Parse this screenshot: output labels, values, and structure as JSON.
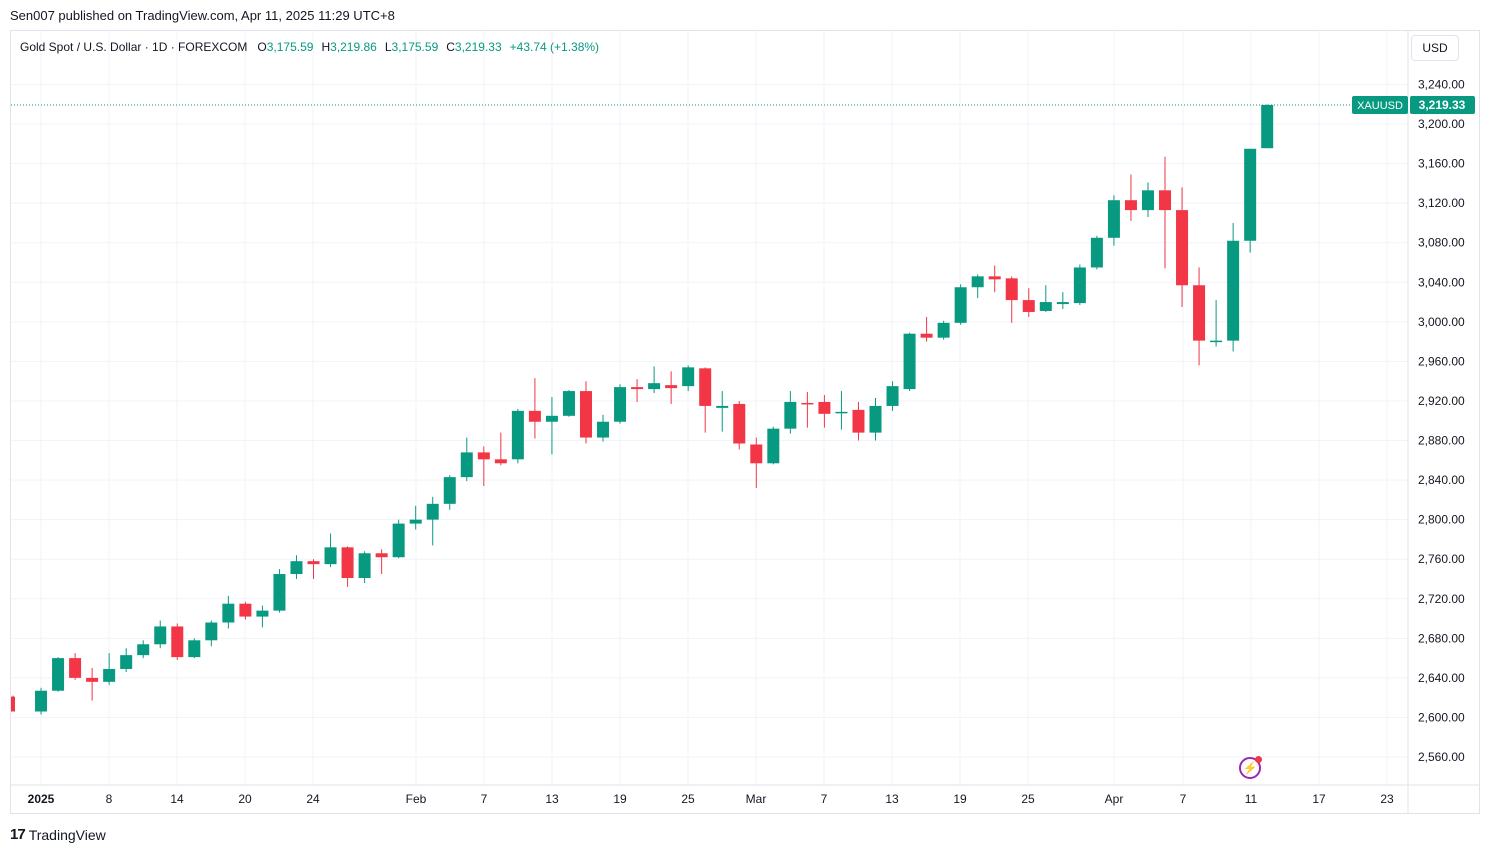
{
  "header": {
    "published": "Sen007 published on TradingView.com, Apr 11, 2025 11:29 UTC+8"
  },
  "legend": {
    "symbol": "Gold Spot / U.S. Dollar · 1D · FOREXCOM",
    "o_label": "O",
    "o": "3,175.59",
    "h_label": "H",
    "h": "3,219.86",
    "l_label": "L",
    "l": "3,175.59",
    "c_label": "C",
    "c": "3,219.33",
    "change": "+43.74 (+1.38%)"
  },
  "currency_button": "USD",
  "price_tag": {
    "ticker": "XAUUSD",
    "price": "3,219.33"
  },
  "brand": "TradingView",
  "colors": {
    "up": "#089981",
    "down": "#f23645",
    "grid": "#f0f3fa",
    "text": "#131722",
    "alert": "#9c27b0"
  },
  "icons": {
    "alert": "lightning-bolt-icon",
    "brand": "tradingview-logo-icon"
  },
  "chart_data": {
    "type": "candlestick",
    "ylim": [
      2520,
      3280
    ],
    "y_ticks": [
      2560,
      2600,
      2640,
      2680,
      2720,
      2760,
      2800,
      2840,
      2880,
      2920,
      2960,
      3000,
      3040,
      3080,
      3120,
      3160,
      3200,
      3240
    ],
    "y_tick_labels": [
      "2,560.00",
      "2,600.00",
      "2,640.00",
      "2,680.00",
      "2,720.00",
      "2,760.00",
      "2,800.00",
      "2,840.00",
      "2,880.00",
      "2,920.00",
      "2,960.00",
      "3,000.00",
      "3,040.00",
      "3,080.00",
      "3,120.00",
      "3,160.00",
      "3,200.00",
      "3,240.00"
    ],
    "x_labels": [
      "2025",
      "8",
      "14",
      "20",
      "24",
      "Feb",
      "7",
      "13",
      "19",
      "25",
      "Mar",
      "7",
      "13",
      "19",
      "25",
      "Apr",
      "7",
      "11",
      "17",
      "23"
    ],
    "last_price": 3219.33,
    "candles": [
      {
        "o": 2621,
        "h": 2622,
        "l": 2606,
        "c": 2606
      },
      {
        "o": 2606,
        "h": 2630,
        "l": 2603,
        "c": 2627
      },
      {
        "o": 2627,
        "h": 2661,
        "l": 2626,
        "c": 2660
      },
      {
        "o": 2660,
        "h": 2665,
        "l": 2638,
        "c": 2640
      },
      {
        "o": 2640,
        "h": 2650,
        "l": 2617,
        "c": 2636
      },
      {
        "o": 2636,
        "h": 2665,
        "l": 2633,
        "c": 2649
      },
      {
        "o": 2649,
        "h": 2670,
        "l": 2646,
        "c": 2663
      },
      {
        "o": 2663,
        "h": 2678,
        "l": 2660,
        "c": 2674
      },
      {
        "o": 2674,
        "h": 2698,
        "l": 2670,
        "c": 2692
      },
      {
        "o": 2692,
        "h": 2695,
        "l": 2658,
        "c": 2661
      },
      {
        "o": 2661,
        "h": 2680,
        "l": 2660,
        "c": 2678
      },
      {
        "o": 2678,
        "h": 2698,
        "l": 2672,
        "c": 2696
      },
      {
        "o": 2696,
        "h": 2723,
        "l": 2690,
        "c": 2715
      },
      {
        "o": 2715,
        "h": 2717,
        "l": 2699,
        "c": 2702
      },
      {
        "o": 2702,
        "h": 2713,
        "l": 2691,
        "c": 2708
      },
      {
        "o": 2708,
        "h": 2750,
        "l": 2706,
        "c": 2745
      },
      {
        "o": 2745,
        "h": 2764,
        "l": 2740,
        "c": 2758
      },
      {
        "o": 2758,
        "h": 2760,
        "l": 2740,
        "c": 2755
      },
      {
        "o": 2755,
        "h": 2786,
        "l": 2752,
        "c": 2772
      },
      {
        "o": 2772,
        "h": 2773,
        "l": 2732,
        "c": 2741
      },
      {
        "o": 2741,
        "h": 2768,
        "l": 2736,
        "c": 2766
      },
      {
        "o": 2766,
        "h": 2770,
        "l": 2745,
        "c": 2762
      },
      {
        "o": 2762,
        "h": 2800,
        "l": 2761,
        "c": 2796
      },
      {
        "o": 2796,
        "h": 2814,
        "l": 2790,
        "c": 2800
      },
      {
        "o": 2800,
        "h": 2823,
        "l": 2774,
        "c": 2816
      },
      {
        "o": 2816,
        "h": 2845,
        "l": 2810,
        "c": 2843
      },
      {
        "o": 2843,
        "h": 2883,
        "l": 2839,
        "c": 2868
      },
      {
        "o": 2868,
        "h": 2874,
        "l": 2834,
        "c": 2861
      },
      {
        "o": 2861,
        "h": 2888,
        "l": 2855,
        "c": 2857
      },
      {
        "o": 2861,
        "h": 2912,
        "l": 2857,
        "c": 2910
      },
      {
        "o": 2910,
        "h": 2943,
        "l": 2882,
        "c": 2899
      },
      {
        "o": 2899,
        "h": 2924,
        "l": 2866,
        "c": 2905
      },
      {
        "o": 2905,
        "h": 2931,
        "l": 2904,
        "c": 2930
      },
      {
        "o": 2930,
        "h": 2940,
        "l": 2877,
        "c": 2883
      },
      {
        "o": 2883,
        "h": 2906,
        "l": 2879,
        "c": 2899
      },
      {
        "o": 2899,
        "h": 2937,
        "l": 2897,
        "c": 2934
      },
      {
        "o": 2934,
        "h": 2942,
        "l": 2919,
        "c": 2932
      },
      {
        "o": 2932,
        "h": 2955,
        "l": 2928,
        "c": 2938
      },
      {
        "o": 2936,
        "h": 2950,
        "l": 2917,
        "c": 2933
      },
      {
        "o": 2935,
        "h": 2956,
        "l": 2930,
        "c": 2954
      },
      {
        "o": 2953,
        "h": 2954,
        "l": 2888,
        "c": 2915
      },
      {
        "o": 2913,
        "h": 2930,
        "l": 2889,
        "c": 2915
      },
      {
        "o": 2917,
        "h": 2920,
        "l": 2871,
        "c": 2877
      },
      {
        "o": 2876,
        "h": 2883,
        "l": 2832,
        "c": 2857
      },
      {
        "o": 2857,
        "h": 2894,
        "l": 2856,
        "c": 2892
      },
      {
        "o": 2892,
        "h": 2930,
        "l": 2887,
        "c": 2919
      },
      {
        "o": 2918,
        "h": 2929,
        "l": 2893,
        "c": 2917
      },
      {
        "o": 2919,
        "h": 2926,
        "l": 2893,
        "c": 2907
      },
      {
        "o": 2909,
        "h": 2930,
        "l": 2891,
        "c": 2909
      },
      {
        "o": 2911,
        "h": 2919,
        "l": 2880,
        "c": 2888
      },
      {
        "o": 2888,
        "h": 2923,
        "l": 2880,
        "c": 2915
      },
      {
        "o": 2915,
        "h": 2940,
        "l": 2910,
        "c": 2935
      },
      {
        "o": 2932,
        "h": 2989,
        "l": 2930,
        "c": 2988
      },
      {
        "o": 2988,
        "h": 3005,
        "l": 2980,
        "c": 2984
      },
      {
        "o": 2984,
        "h": 3001,
        "l": 2982,
        "c": 2999
      },
      {
        "o": 2999,
        "h": 3038,
        "l": 2997,
        "c": 3035
      },
      {
        "o": 3035,
        "h": 3048,
        "l": 3024,
        "c": 3046
      },
      {
        "o": 3046,
        "h": 3057,
        "l": 3030,
        "c": 3043
      },
      {
        "o": 3044,
        "h": 3046,
        "l": 2999,
        "c": 3022
      },
      {
        "o": 3022,
        "h": 3034,
        "l": 3005,
        "c": 3010
      },
      {
        "o": 3011,
        "h": 3037,
        "l": 3010,
        "c": 3020
      },
      {
        "o": 3018,
        "h": 3030,
        "l": 3013,
        "c": 3020
      },
      {
        "o": 3019,
        "h": 3058,
        "l": 3017,
        "c": 3055
      },
      {
        "o": 3055,
        "h": 3087,
        "l": 3053,
        "c": 3085
      },
      {
        "o": 3085,
        "h": 3128,
        "l": 3077,
        "c": 3123
      },
      {
        "o": 3123,
        "h": 3149,
        "l": 3102,
        "c": 3113
      },
      {
        "o": 3113,
        "h": 3141,
        "l": 3106,
        "c": 3133
      },
      {
        "o": 3133,
        "h": 3167,
        "l": 3054,
        "c": 3113
      },
      {
        "o": 3113,
        "h": 3136,
        "l": 3015,
        "c": 3037
      },
      {
        "o": 3037,
        "h": 3055,
        "l": 2956,
        "c": 2981
      },
      {
        "o": 2981,
        "h": 3022,
        "l": 2975,
        "c": 2981
      },
      {
        "o": 2981,
        "h": 3100,
        "l": 2970,
        "c": 3082
      },
      {
        "o": 3082,
        "h": 3175,
        "l": 3070,
        "c": 3175
      },
      {
        "o": 3175.59,
        "h": 3219.86,
        "l": 3175.59,
        "c": 3219.33
      }
    ]
  }
}
